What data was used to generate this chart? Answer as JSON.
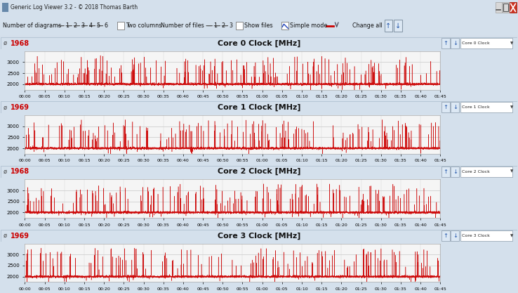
{
  "title_bar": "Generic Log Viewer 3.2 - © 2018 Thomas Barth",
  "panel_titles": [
    "Core 0 Clock [MHz]",
    "Core 1 Clock [MHz]",
    "Core 2 Clock [MHz]",
    "Core 3 Clock [MHz]"
  ],
  "panel_labels": [
    "1968",
    "1969",
    "1968",
    "1969"
  ],
  "y_min": 1750,
  "y_max": 3500,
  "y_ticks": [
    2000,
    2500,
    3000
  ],
  "base_value": 2000,
  "spike_max": 3300,
  "duration_minutes": 105,
  "x_tick_step_minutes": 5,
  "line_color": "#cc0000",
  "panel_bg": "#f5f5f5",
  "grid_color_h": "#c8c8c8",
  "grid_color_v": "#d8d8d8",
  "header_bg": "#dce8f0",
  "window_bg": "#d4e0ec",
  "titlebar_bg": "#b0c4d8",
  "label_color": "#cc0000",
  "n_panels": 4
}
